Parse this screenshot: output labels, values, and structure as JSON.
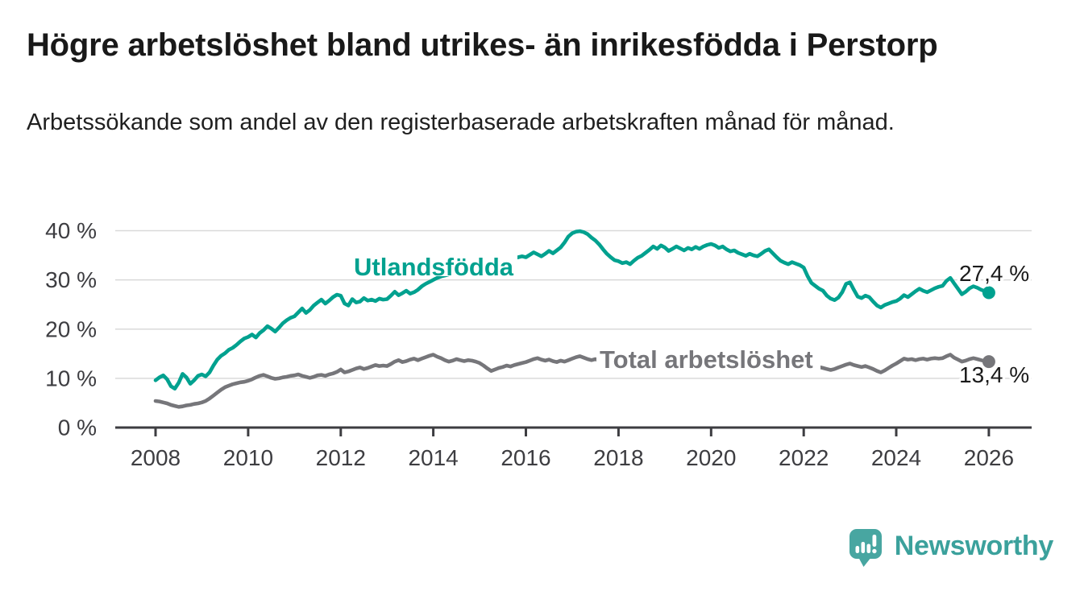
{
  "header": {
    "title": "Högre arbetslöshet bland utrikes- än inrikesfödda i Perstorp",
    "subtitle": "Arbetssökande som andel av den registerbaserade arbetskraften månad för månad."
  },
  "footer": {
    "brand": "Newsworthy",
    "brand_color": "#3ba19c",
    "logo_icon": "speech-bubble-bar-chart"
  },
  "chart_data": {
    "type": "line",
    "title": "Högre arbetslöshet bland utrikes- än inrikesfödda i Perstorp",
    "subtitle": "Arbetssökande som andel av den registerbaserade arbetskraften månad för månad.",
    "x_unit": "month",
    "x_start": "2008-01",
    "x_end": "2026-01",
    "x_tick_labels": [
      "2008",
      "2010",
      "2012",
      "2014",
      "2016",
      "2018",
      "2020",
      "2022",
      "2024",
      "2026"
    ],
    "y_tick_labels": [
      "0 %",
      "10 %",
      "20 %",
      "30 %",
      "40 %"
    ],
    "y_tick_values": [
      0,
      10,
      20,
      30,
      40
    ],
    "ylim": [
      0,
      40
    ],
    "grid": "horizontal",
    "grid_color": "#d9d9d9",
    "axis_color": "#3d3d41",
    "legend_position": "inline-labels",
    "series": [
      {
        "name": "Utlandsfödda",
        "color": "#00a18f",
        "end_label": "27,4 %",
        "end_value": 27.4,
        "values": [
          9.6,
          10.2,
          10.6,
          9.8,
          8.4,
          7.9,
          9.1,
          10.9,
          10.2,
          8.9,
          9.6,
          10.5,
          10.8,
          10.4,
          11.2,
          12.6,
          13.8,
          14.6,
          15.1,
          15.8,
          16.2,
          16.8,
          17.5,
          18.1,
          18.4,
          18.9,
          18.3,
          19.2,
          19.8,
          20.6,
          20.1,
          19.5,
          20.3,
          21.2,
          21.8,
          22.3,
          22.6,
          23.4,
          24.2,
          23.3,
          23.9,
          24.8,
          25.4,
          26.0,
          25.2,
          25.8,
          26.5,
          27.0,
          26.8,
          25.2,
          24.8,
          26.1,
          25.4,
          25.6,
          26.3,
          25.8,
          26.0,
          25.7,
          26.2,
          26.0,
          26.1,
          26.8,
          27.6,
          26.9,
          27.3,
          27.8,
          27.2,
          27.5,
          28.0,
          28.7,
          29.2,
          29.6,
          30.0,
          30.4,
          30.7,
          30.9,
          31.1,
          31.3,
          31.5,
          31.7,
          31.9,
          32.1,
          32.3,
          32.5,
          32.7,
          32.9,
          33.0,
          33.2,
          33.3,
          33.5,
          33.7,
          33.9,
          34.1,
          34.4,
          34.6,
          34.8,
          34.6,
          35.1,
          35.6,
          35.2,
          34.8,
          35.3,
          35.9,
          35.4,
          36.0,
          36.6,
          37.6,
          38.8,
          39.5,
          39.8,
          39.9,
          39.7,
          39.3,
          38.6,
          38.0,
          37.2,
          36.2,
          35.3,
          34.6,
          34.0,
          33.8,
          33.4,
          33.6,
          33.2,
          33.9,
          34.5,
          34.9,
          35.5,
          36.1,
          36.8,
          36.3,
          37.0,
          36.6,
          35.9,
          36.3,
          36.8,
          36.4,
          36.0,
          36.5,
          36.2,
          36.7,
          36.3,
          36.8,
          37.1,
          37.3,
          37.0,
          36.5,
          36.8,
          36.2,
          35.8,
          36.0,
          35.5,
          35.2,
          34.9,
          35.3,
          35.0,
          34.8,
          35.3,
          35.9,
          36.2,
          35.4,
          34.6,
          33.9,
          33.5,
          33.2,
          33.6,
          33.3,
          33.0,
          32.5,
          30.8,
          29.4,
          28.8,
          28.2,
          27.8,
          26.8,
          26.2,
          25.9,
          26.4,
          27.5,
          29.2,
          29.5,
          28.0,
          26.6,
          26.3,
          26.8,
          26.5,
          25.6,
          24.8,
          24.4,
          24.9,
          25.2,
          25.5,
          25.7,
          26.2,
          26.9,
          26.5,
          27.1,
          27.7,
          28.2,
          27.8,
          27.5,
          27.9,
          28.3,
          28.6,
          28.8,
          29.8,
          30.4,
          29.3,
          28.2,
          27.1,
          27.6,
          28.3,
          28.7,
          28.4,
          28.0,
          27.7,
          27.4
        ]
      },
      {
        "name": "Total arbetslöshet",
        "color": "#76767a",
        "end_label": "13,4 %",
        "end_value": 13.4,
        "values": [
          5.4,
          5.3,
          5.1,
          4.9,
          4.6,
          4.4,
          4.2,
          4.3,
          4.5,
          4.6,
          4.8,
          4.9,
          5.1,
          5.4,
          5.9,
          6.5,
          7.1,
          7.7,
          8.2,
          8.5,
          8.8,
          9.0,
          9.2,
          9.3,
          9.5,
          9.8,
          10.2,
          10.5,
          10.7,
          10.4,
          10.1,
          9.9,
          10.0,
          10.2,
          10.3,
          10.5,
          10.6,
          10.8,
          10.5,
          10.3,
          10.1,
          10.3,
          10.6,
          10.7,
          10.5,
          10.8,
          11.0,
          11.3,
          11.8,
          11.2,
          11.4,
          11.7,
          12.0,
          12.2,
          11.9,
          12.1,
          12.4,
          12.7,
          12.5,
          12.6,
          12.5,
          12.9,
          13.4,
          13.7,
          13.3,
          13.5,
          13.8,
          14.0,
          13.7,
          14.0,
          14.3,
          14.6,
          14.8,
          14.4,
          14.1,
          13.7,
          13.4,
          13.6,
          13.9,
          13.7,
          13.5,
          13.7,
          13.6,
          13.4,
          13.1,
          12.6,
          12.0,
          11.5,
          11.8,
          12.1,
          12.3,
          12.6,
          12.4,
          12.7,
          12.9,
          13.1,
          13.3,
          13.6,
          13.9,
          14.1,
          13.8,
          13.6,
          13.8,
          13.5,
          13.3,
          13.6,
          13.4,
          13.7,
          14.0,
          14.3,
          14.5,
          14.2,
          13.9,
          13.7,
          13.9,
          13.6,
          13.8,
          13.5,
          13.7,
          13.9,
          13.7,
          13.4,
          13.6,
          13.3,
          13.1,
          13.3,
          13.5,
          13.2,
          13.0,
          13.2,
          13.4,
          13.1,
          12.9,
          13.1,
          12.8,
          13.0,
          13.2,
          13.4,
          13.6,
          13.3,
          13.5,
          13.7,
          13.9,
          14.1,
          14.3,
          14.5,
          14.8,
          15.0,
          14.7,
          14.4,
          14.2,
          13.9,
          13.7,
          13.5,
          13.2,
          13.0,
          12.8,
          12.9,
          12.7,
          12.5,
          12.6,
          12.4,
          12.5,
          12.3,
          12.4,
          12.2,
          12.3,
          12.4,
          12.5,
          12.3,
          12.4,
          12.2,
          12.3,
          12.1,
          11.9,
          11.7,
          11.9,
          12.2,
          12.5,
          12.8,
          13.0,
          12.7,
          12.5,
          12.3,
          12.5,
          12.2,
          11.9,
          11.5,
          11.2,
          11.6,
          12.1,
          12.6,
          13.0,
          13.5,
          14.0,
          13.8,
          13.9,
          13.7,
          13.9,
          14.0,
          13.8,
          14.0,
          14.1,
          14.0,
          14.1,
          14.5,
          14.8,
          14.2,
          13.8,
          13.4,
          13.6,
          13.9,
          14.1,
          13.9,
          13.7,
          13.5,
          13.4
        ]
      }
    ]
  }
}
